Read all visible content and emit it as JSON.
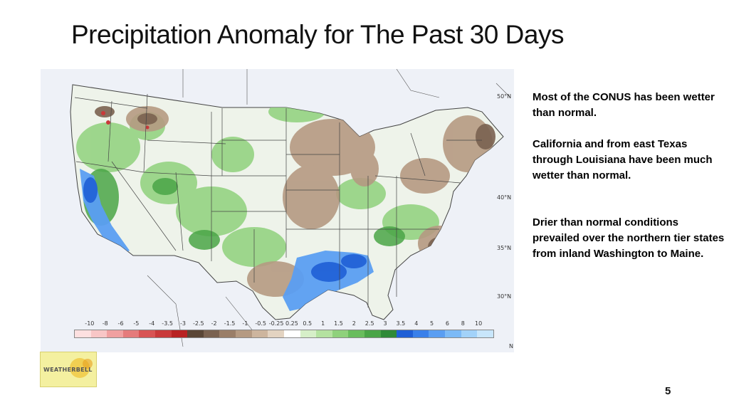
{
  "slide": {
    "title": "Precipitation Anomaly for The Past 30 Days",
    "page_number": "5"
  },
  "notes": [
    "Most of the CONUS has been wetter than normal.",
    "California and from east Texas through Louisiana have been much wetter than normal.",
    "Drier than normal conditions prevailed over the northern tier states from inland Washington to Maine."
  ],
  "map": {
    "latitude_labels": [
      "50°N",
      "40°N",
      "35°N",
      "30°N"
    ],
    "legend_ticks": [
      "-10",
      "-8",
      "-6",
      "-5",
      "-4",
      "-3.5",
      "-3",
      "-2.5",
      "-2",
      "-1.5",
      "-1",
      "-0.5",
      "-0.25",
      "0.25",
      "0.5",
      "1",
      "1.5",
      "2",
      "2.5",
      "3",
      "3.5",
      "4",
      "5",
      "6",
      "8",
      "10"
    ],
    "legend_colors": [
      "#fde0e0",
      "#f8c6c6",
      "#f0a0a0",
      "#e57b7b",
      "#d85454",
      "#c93a3a",
      "#b82222",
      "#5a4636",
      "#7a6250",
      "#9a7e68",
      "#b59a82",
      "#cdb59e",
      "#e3d3c1",
      "#ffffff",
      "#d6efc8",
      "#b4e2a0",
      "#8fd17c",
      "#69bd5d",
      "#4aa547",
      "#2f8a38",
      "#1f5fd6",
      "#3a80ea",
      "#5a9ef2",
      "#7cbaf6",
      "#a2d2f9",
      "#c8e6fb"
    ],
    "north_label": "N"
  },
  "logo": {
    "text": "WEATHERBELL"
  }
}
